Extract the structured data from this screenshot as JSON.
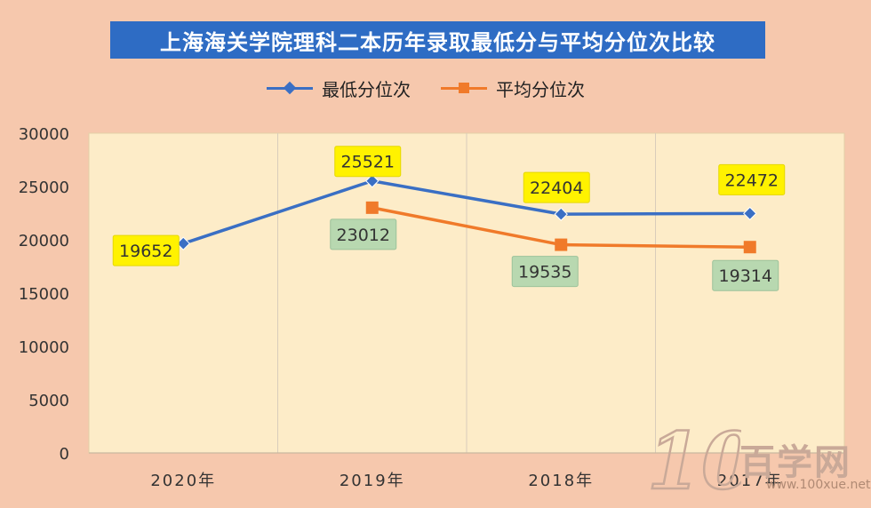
{
  "chart_data": {
    "type": "line",
    "title": "上海海关学院理科二本历年录取最低分与平均分位次比较",
    "categories": [
      "2020年",
      "2019年",
      "2018年",
      "2017年"
    ],
    "series": [
      {
        "name": "最低分位次",
        "color": "#3a6fc4",
        "marker": "diamond",
        "label_bg": "#fff200",
        "values": [
          19652,
          25521,
          22404,
          22472
        ]
      },
      {
        "name": "平均分位次",
        "color": "#f07a2a",
        "marker": "square",
        "label_bg": "#b8d8b0",
        "values": [
          null,
          23012,
          19535,
          19314
        ]
      }
    ],
    "yticks": [
      "0",
      "5000",
      "10000",
      "15000",
      "20000",
      "25000",
      "30000"
    ],
    "ylim": [
      0,
      30000
    ],
    "grid": "vertical",
    "legend_position": "top",
    "plot_background": "#fdecc8"
  },
  "watermark": {
    "brand": "百学网",
    "logo_text": "100",
    "url": "www.100xue.net"
  }
}
